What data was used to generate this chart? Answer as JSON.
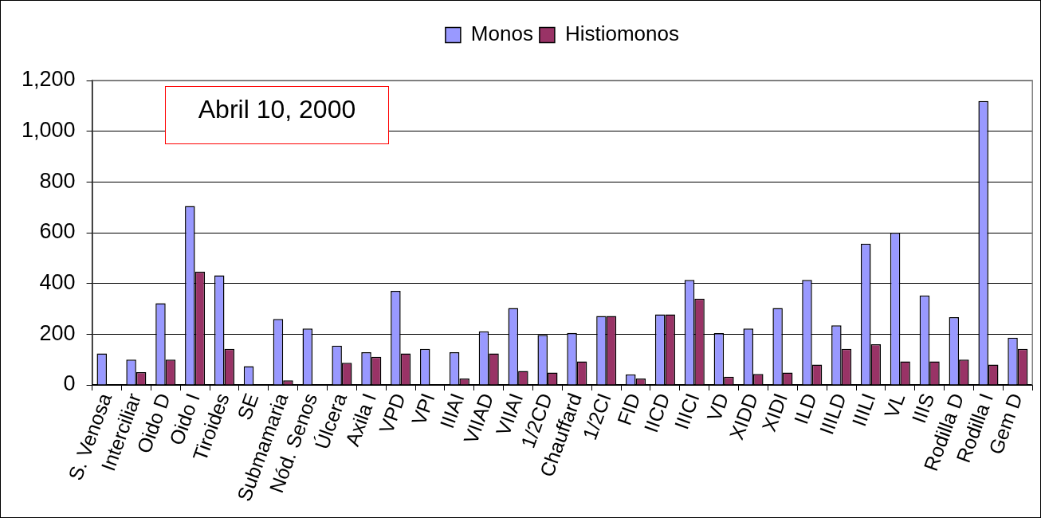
{
  "chart_data": {
    "type": "bar",
    "annotations": [
      "Abril 10, 2000"
    ],
    "categories": [
      "S. Venosa",
      "Interciliar",
      "Oido D",
      "Oido I",
      "Tiroides",
      "SE",
      "Submamaria",
      "Nód. Senos",
      "Úlcera",
      "Axila I",
      "VPD",
      "VPI",
      "IIIAI",
      "VIIAD",
      "VIIAI",
      "1/2CD",
      "Chauffard",
      "1/2CI",
      "FID",
      "IICD",
      "IIICI",
      "VD",
      "XIDD",
      "XIDI",
      "ILD",
      "IIILD",
      "IIILI",
      "VL",
      "IIIS",
      "Rodilla D",
      "Rodilla I",
      "Gem D"
    ],
    "series": [
      {
        "name": "Monos",
        "color": "#9999ff",
        "values": [
          124,
          100,
          322,
          705,
          432,
          74,
          260,
          222,
          155,
          129,
          371,
          142,
          129,
          211,
          303,
          197,
          205,
          272,
          42,
          278,
          414,
          204,
          222,
          303,
          414,
          235,
          557,
          600,
          353,
          267,
          1119,
          186
        ]
      },
      {
        "name": "Histiomonos",
        "color": "#993366",
        "values": [
          null,
          50,
          100,
          446,
          142,
          null,
          18,
          null,
          87,
          111,
          124,
          null,
          25,
          124,
          55,
          49,
          93,
          272,
          25,
          278,
          340,
          32,
          43,
          49,
          80,
          142,
          160,
          93,
          93,
          100,
          80,
          142
        ]
      }
    ],
    "ylim": [
      0,
      1200
    ],
    "yticks": [
      0,
      200,
      400,
      600,
      800,
      {
        "value": 1000,
        "label": "1,000"
      },
      {
        "value": 1200,
        "label": "1,200"
      }
    ],
    "grid": "y",
    "legend": "top"
  }
}
